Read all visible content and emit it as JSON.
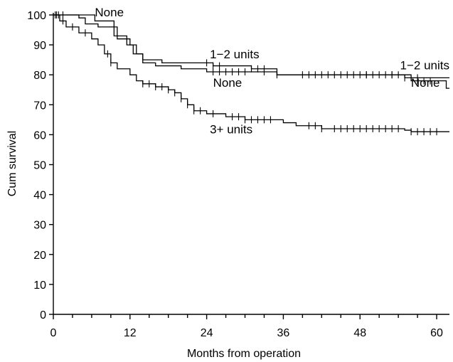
{
  "chart_data": {
    "type": "line",
    "title": "",
    "xlabel": "Months from operation",
    "ylabel": "Cum survival",
    "xlim": [
      0,
      62
    ],
    "ylim": [
      0,
      100
    ],
    "x_ticks": [
      0,
      12,
      24,
      36,
      48,
      60
    ],
    "y_ticks": [
      0,
      10,
      20,
      30,
      40,
      50,
      60,
      70,
      80,
      90,
      100
    ],
    "grid": false,
    "legend": "none",
    "series": [
      {
        "name": "None",
        "steps": [
          [
            0,
            100
          ],
          [
            6,
            100
          ],
          [
            6.5,
            98
          ],
          [
            8.5,
            98
          ],
          [
            9.5,
            93
          ],
          [
            11.5,
            90
          ],
          [
            12.5,
            87
          ],
          [
            14,
            84
          ],
          [
            16,
            83
          ],
          [
            20,
            82
          ],
          [
            24,
            81
          ],
          [
            27,
            81
          ],
          [
            31,
            81
          ],
          [
            35,
            80
          ],
          [
            45,
            80
          ],
          [
            56,
            78
          ],
          [
            61,
            78
          ],
          [
            61.5,
            75.5
          ],
          [
            62,
            75.5
          ]
        ],
        "censor_x": [
          0.3,
          0.8,
          1.5,
          25,
          26,
          27,
          28,
          29,
          30,
          33,
          35,
          49,
          53,
          57,
          58,
          59
        ]
      },
      {
        "name": "1–2 units",
        "steps": [
          [
            0,
            100
          ],
          [
            4,
            99
          ],
          [
            5,
            97
          ],
          [
            7,
            96
          ],
          [
            10,
            92
          ],
          [
            12,
            90
          ],
          [
            13,
            87
          ],
          [
            14,
            85
          ],
          [
            17,
            84
          ],
          [
            22,
            84
          ],
          [
            25,
            83
          ],
          [
            31,
            82
          ],
          [
            35,
            80
          ],
          [
            50,
            80
          ],
          [
            55,
            79
          ],
          [
            62,
            79
          ]
        ],
        "censor_x": [
          24,
          25,
          26,
          31,
          32,
          33,
          39,
          40,
          41,
          42,
          43,
          44,
          45,
          46,
          47,
          48,
          49,
          50,
          51,
          52,
          53,
          54,
          55,
          57
        ]
      },
      {
        "name": "3+ units",
        "steps": [
          [
            0,
            100
          ],
          [
            1,
            98
          ],
          [
            2,
            96
          ],
          [
            4,
            94
          ],
          [
            6,
            92
          ],
          [
            7,
            90
          ],
          [
            8,
            87
          ],
          [
            9,
            84
          ],
          [
            10,
            82
          ],
          [
            12,
            80
          ],
          [
            13,
            78
          ],
          [
            14,
            77
          ],
          [
            16,
            76
          ],
          [
            18,
            75
          ],
          [
            19,
            74
          ],
          [
            20,
            72
          ],
          [
            21,
            70
          ],
          [
            22,
            68
          ],
          [
            24,
            67
          ],
          [
            27,
            66
          ],
          [
            30,
            65
          ],
          [
            36,
            64
          ],
          [
            38,
            63
          ],
          [
            42,
            62
          ],
          [
            55,
            61.5
          ],
          [
            56,
            61
          ],
          [
            62,
            61
          ]
        ],
        "censor_x": [
          0.5,
          1.5,
          3,
          5,
          8.5,
          9,
          14,
          15,
          16,
          17,
          18,
          19,
          20,
          21,
          22,
          23,
          25,
          28,
          29,
          30,
          31,
          32,
          33,
          34,
          40,
          41,
          42,
          44,
          45,
          46,
          47,
          48,
          49,
          50,
          51,
          52,
          53,
          54,
          56,
          57,
          58,
          59,
          60
        ]
      }
    ],
    "annotations": [
      {
        "text": "None",
        "x": 6.5,
        "y": 99.5,
        "anchor": "start"
      },
      {
        "text": "1−2 units",
        "x": 24.5,
        "y": 85.5,
        "anchor": "start"
      },
      {
        "text": "1−2 units",
        "x": 62,
        "y": 81.8,
        "anchor": "end"
      },
      {
        "text": "None",
        "x": 25,
        "y": 76,
        "anchor": "start"
      },
      {
        "text": "None",
        "x": 60.5,
        "y": 76,
        "anchor": "end"
      },
      {
        "text": "3+ units",
        "x": 24.5,
        "y": 60.5,
        "anchor": "start"
      }
    ]
  }
}
